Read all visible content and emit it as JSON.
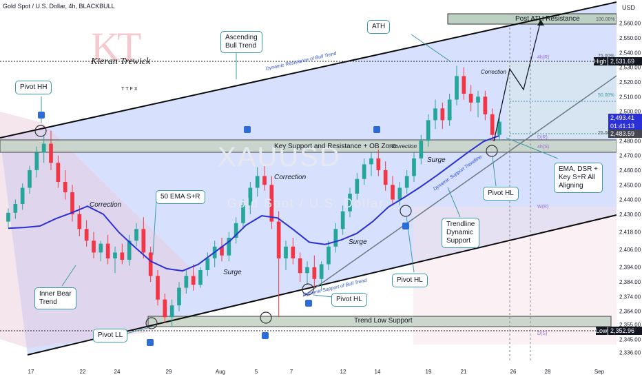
{
  "header": {
    "title": "Gold Spot / U.S. Dollar, 4h, BLACKBULL",
    "currency": "USD"
  },
  "watermark": {
    "main": "XAUUSD",
    "sub": "Gold Spot / U.S. Dollar"
  },
  "logo": {
    "letters": "KT",
    "signature": "Kieran Trewick",
    "brand": "TTFX"
  },
  "colors": {
    "up": "#26a69a",
    "down": "#f23645",
    "ema": "#2b2fd6",
    "channel": "#0b0b0b",
    "zone": "#c8d6c8"
  },
  "chart_data": {
    "type": "candlestick",
    "title": "Gold Spot / U.S. Dollar, 4h, BLACKBULL",
    "y_axis": {
      "unit": "USD",
      "range": [
        2332,
        2572
      ],
      "ticks": [
        "2,560.00",
        "2,550.00",
        "2,540.00",
        "2,530.00",
        "2,520.00",
        "2,510.00",
        "2,500.00",
        "2,490.00",
        "2,480.00",
        "2,470.00",
        "2,460.00",
        "2,450.00",
        "2,440.00",
        "2,430.00",
        "2,418.00",
        "2,406.00",
        "2,394.00",
        "2,384.00",
        "2,374.00",
        "2,364.00",
        "2,355.00",
        "2,345.00",
        "2,336.00"
      ]
    },
    "x_axis": {
      "ticks": [
        "17",
        "22",
        "24",
        "29",
        "Aug",
        "5",
        "7",
        "12",
        "14",
        "19",
        "21",
        "26",
        "28",
        "Sep"
      ]
    },
    "price_boxes": [
      {
        "label": "High",
        "value": "2,531.69",
        "color": "#131722"
      },
      {
        "label": "",
        "value": "2,493.41",
        "color": "#2b2fd6"
      },
      {
        "label": "",
        "value": "01:41:13",
        "color": "#2b2fd6"
      },
      {
        "label": "",
        "value": "2,483.59",
        "color": "#434651"
      },
      {
        "label": "Low",
        "value": "2,352.96",
        "color": "#131722"
      }
    ],
    "fib_labels": [
      "100.00%",
      "75.00%",
      "50.00%",
      "25.00%",
      "4h(R)",
      "4h(S)",
      "W(R)",
      "D(S)",
      "D(R)"
    ],
    "ema_path": [
      [
        2420,
        2421
      ],
      [
        2419,
        2423
      ],
      [
        2420,
        2424
      ],
      [
        2426,
        2428
      ],
      [
        2430,
        2432
      ],
      [
        2435,
        2436
      ],
      [
        2432,
        2428
      ],
      [
        2420,
        2415
      ],
      [
        2410,
        2405
      ],
      [
        2400,
        2396
      ],
      [
        2394,
        2392
      ],
      [
        2391,
        2392
      ],
      [
        2394,
        2398
      ],
      [
        2402,
        2406
      ],
      [
        2410,
        2414
      ],
      [
        2420,
        2425
      ],
      [
        2428,
        2430
      ],
      [
        2429,
        2426
      ],
      [
        2422,
        2417
      ],
      [
        2412,
        2410
      ],
      [
        2409,
        2410
      ],
      [
        2411,
        2414
      ],
      [
        2416,
        2418
      ],
      [
        2422,
        2428
      ],
      [
        2433,
        2437
      ],
      [
        2440,
        2443
      ],
      [
        2447,
        2450
      ],
      [
        2454,
        2458
      ],
      [
        2462,
        2466
      ],
      [
        2470,
        2474
      ],
      [
        2478,
        2481
      ],
      [
        2483,
        2484
      ]
    ],
    "candles": [
      [
        2425,
        2434,
        2421,
        2431
      ],
      [
        2431,
        2440,
        2427,
        2437
      ],
      [
        2437,
        2451,
        2433,
        2448
      ],
      [
        2448,
        2463,
        2444,
        2460
      ],
      [
        2460,
        2476,
        2455,
        2472
      ],
      [
        2472,
        2484,
        2465,
        2478
      ],
      [
        2478,
        2487,
        2460,
        2465
      ],
      [
        2465,
        2470,
        2448,
        2452
      ],
      [
        2452,
        2460,
        2440,
        2445
      ],
      [
        2445,
        2450,
        2425,
        2430
      ],
      [
        2430,
        2436,
        2415,
        2420
      ],
      [
        2420,
        2426,
        2408,
        2412
      ],
      [
        2412,
        2418,
        2400,
        2404
      ],
      [
        2404,
        2412,
        2398,
        2410
      ],
      [
        2410,
        2416,
        2396,
        2400
      ],
      [
        2400,
        2408,
        2390,
        2404
      ],
      [
        2404,
        2410,
        2396,
        2399
      ],
      [
        2399,
        2416,
        2395,
        2412
      ],
      [
        2412,
        2424,
        2408,
        2420
      ],
      [
        2420,
        2428,
        2400,
        2404
      ],
      [
        2404,
        2408,
        2384,
        2388
      ],
      [
        2388,
        2392,
        2368,
        2372
      ],
      [
        2372,
        2376,
        2356,
        2360
      ],
      [
        2360,
        2372,
        2354,
        2368
      ],
      [
        2368,
        2384,
        2364,
        2380
      ],
      [
        2380,
        2392,
        2376,
        2388
      ],
      [
        2388,
        2396,
        2378,
        2382
      ],
      [
        2382,
        2394,
        2380,
        2392
      ],
      [
        2392,
        2404,
        2388,
        2400
      ],
      [
        2400,
        2412,
        2394,
        2408
      ],
      [
        2408,
        2414,
        2398,
        2402
      ],
      [
        2402,
        2418,
        2398,
        2414
      ],
      [
        2414,
        2428,
        2410,
        2424
      ],
      [
        2424,
        2440,
        2420,
        2436
      ],
      [
        2436,
        2452,
        2430,
        2448
      ],
      [
        2448,
        2462,
        2442,
        2456
      ],
      [
        2456,
        2464,
        2446,
        2450
      ],
      [
        2450,
        2456,
        2420,
        2425
      ],
      [
        2425,
        2432,
        2360,
        2400
      ],
      [
        2400,
        2412,
        2392,
        2408
      ],
      [
        2408,
        2414,
        2396,
        2400
      ],
      [
        2400,
        2404,
        2384,
        2390
      ],
      [
        2390,
        2398,
        2382,
        2394
      ],
      [
        2394,
        2402,
        2380,
        2386
      ],
      [
        2386,
        2398,
        2378,
        2396
      ],
      [
        2396,
        2412,
        2392,
        2408
      ],
      [
        2408,
        2424,
        2404,
        2420
      ],
      [
        2420,
        2436,
        2416,
        2432
      ],
      [
        2432,
        2448,
        2428,
        2444
      ],
      [
        2444,
        2458,
        2440,
        2454
      ],
      [
        2454,
        2468,
        2450,
        2464
      ],
      [
        2464,
        2472,
        2456,
        2468
      ],
      [
        2468,
        2474,
        2456,
        2460
      ],
      [
        2460,
        2466,
        2446,
        2450
      ],
      [
        2450,
        2456,
        2436,
        2440
      ],
      [
        2440,
        2452,
        2436,
        2448
      ],
      [
        2448,
        2460,
        2444,
        2456
      ],
      [
        2456,
        2472,
        2452,
        2468
      ],
      [
        2468,
        2484,
        2464,
        2480
      ],
      [
        2480,
        2498,
        2476,
        2494
      ],
      [
        2494,
        2508,
        2488,
        2502
      ],
      [
        2502,
        2506,
        2488,
        2494
      ],
      [
        2494,
        2512,
        2490,
        2508
      ],
      [
        2508,
        2531,
        2504,
        2524
      ],
      [
        2524,
        2530,
        2508,
        2512
      ],
      [
        2512,
        2518,
        2500,
        2506
      ],
      [
        2506,
        2514,
        2496,
        2510
      ],
      [
        2510,
        2514,
        2494,
        2498
      ],
      [
        2498,
        2502,
        2480,
        2484
      ],
      [
        2484,
        2496,
        2480,
        2493
      ]
    ]
  },
  "annotations": {
    "callouts": {
      "pivot_hh": "Pivot HH",
      "ascending": "Ascending\nBull Trend",
      "ath": "ATH",
      "ema50": "50 EMA S+R",
      "inner_bear": "Inner Bear\nTrend",
      "pivot_ll": "Pivot LL",
      "pivot_hl_1": "Pivot HL",
      "pivot_hl_2": "Pivot HL",
      "pivot_hl_3": "Pivot HL",
      "trendline": "Trendline\nDynamic\nSupport",
      "ema_dsr": "EMA, DSR +\nKey S+R All\nAligning"
    },
    "labels": {
      "correction_1": "Correction",
      "correction_2": "Correction",
      "correction_3": "Correction",
      "correction_4": "Correction",
      "surge_1": "Surge",
      "surge_2": "Surge",
      "surge_3": "Surge",
      "dyn_resistance": "Dynamic Resistance of Bull Trend",
      "dyn_support_trendline": "Dynamic Support Trendline",
      "dyn_support_bull": "Dynamic Support of Bull Trend"
    },
    "zones": {
      "post_ath": "Post ATH Resistance",
      "key_sr": "Key Support and Resistance + OB Zone",
      "trend_low": "Trend Low Support"
    }
  }
}
